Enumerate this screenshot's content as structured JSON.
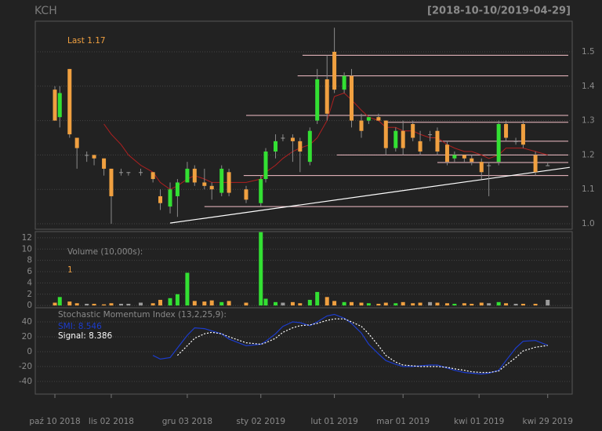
{
  "chart_data": [
    {
      "type": "candlestick",
      "title": "KCH",
      "subtitle": "[2018-10-10/2019-04-29]",
      "last_label": "Last",
      "up_color": "#33e033",
      "down_color": "#f0a040",
      "doji_color": "#9a9a9a",
      "x": [
        "2018-10-10",
        "2018-10-12",
        "2018-10-16",
        "2018-10-19",
        "2018-10-23",
        "2018-10-26",
        "2018-10-30",
        "2018-11-02",
        "2018-11-06",
        "2018-11-09",
        "2018-11-14",
        "2018-11-19",
        "2018-11-22",
        "2018-11-26",
        "2018-11-29",
        "2018-12-03",
        "2018-12-06",
        "2018-12-10",
        "2018-12-13",
        "2018-12-17",
        "2018-12-20",
        "2018-12-27",
        "2019-01-02",
        "2019-01-04",
        "2019-01-08",
        "2019-01-11",
        "2019-01-15",
        "2019-01-18",
        "2019-01-22",
        "2019-01-25",
        "2019-01-29",
        "2019-02-01",
        "2019-02-05",
        "2019-02-08",
        "2019-02-12",
        "2019-02-15",
        "2019-02-19",
        "2019-02-22",
        "2019-02-26",
        "2019-03-01",
        "2019-03-05",
        "2019-03-08",
        "2019-03-12",
        "2019-03-15",
        "2019-03-19",
        "2019-03-22",
        "2019-03-26",
        "2019-03-29",
        "2019-04-02",
        "2019-04-05",
        "2019-04-09",
        "2019-04-12",
        "2019-04-16",
        "2019-04-19",
        "2019-04-24",
        "2019-04-29"
      ],
      "open": [
        1.39,
        1.31,
        1.45,
        1.25,
        1.2,
        1.2,
        1.19,
        1.16,
        1.15,
        1.15,
        1.15,
        1.15,
        1.08,
        1.05,
        1.08,
        1.12,
        1.16,
        1.12,
        1.11,
        1.09,
        1.15,
        1.1,
        1.06,
        1.13,
        1.21,
        1.25,
        1.25,
        1.24,
        1.18,
        1.3,
        1.42,
        1.5,
        1.39,
        1.43,
        1.3,
        1.3,
        1.31,
        1.3,
        1.22,
        1.27,
        1.29,
        1.24,
        1.26,
        1.27,
        1.23,
        1.19,
        1.2,
        1.19,
        1.18,
        1.17,
        1.18,
        1.29,
        1.24,
        1.29,
        1.2,
        1.17
      ],
      "high": [
        1.4,
        1.4,
        1.45,
        1.25,
        1.21,
        1.2,
        1.19,
        1.16,
        1.16,
        1.15,
        1.16,
        1.15,
        1.1,
        1.12,
        1.13,
        1.18,
        1.17,
        1.16,
        1.12,
        1.17,
        1.16,
        1.11,
        1.14,
        1.22,
        1.26,
        1.26,
        1.26,
        1.25,
        1.28,
        1.45,
        1.49,
        1.57,
        1.44,
        1.45,
        1.32,
        1.31,
        1.32,
        1.3,
        1.28,
        1.3,
        1.3,
        1.27,
        1.27,
        1.28,
        1.24,
        1.21,
        1.2,
        1.2,
        1.19,
        1.18,
        1.3,
        1.3,
        1.25,
        1.3,
        1.21,
        1.18
      ],
      "low": [
        1.3,
        1.28,
        1.25,
        1.16,
        1.18,
        1.17,
        1.14,
        1.0,
        1.14,
        1.14,
        1.14,
        1.12,
        1.04,
        1.03,
        1.02,
        1.12,
        1.11,
        1.1,
        1.07,
        1.08,
        1.08,
        1.06,
        1.05,
        1.12,
        1.19,
        1.24,
        1.18,
        1.15,
        1.17,
        1.29,
        1.3,
        1.38,
        1.38,
        1.28,
        1.25,
        1.29,
        1.3,
        1.2,
        1.21,
        1.2,
        1.24,
        1.2,
        1.24,
        1.2,
        1.17,
        1.18,
        1.18,
        1.17,
        1.13,
        1.08,
        1.17,
        1.24,
        1.23,
        1.22,
        1.14,
        1.17
      ],
      "close": [
        1.3,
        1.38,
        1.26,
        1.22,
        1.2,
        1.19,
        1.16,
        1.08,
        1.15,
        1.15,
        1.15,
        1.13,
        1.06,
        1.1,
        1.12,
        1.16,
        1.12,
        1.11,
        1.1,
        1.16,
        1.09,
        1.07,
        1.13,
        1.21,
        1.24,
        1.25,
        1.24,
        1.21,
        1.27,
        1.42,
        1.32,
        1.39,
        1.43,
        1.3,
        1.27,
        1.31,
        1.3,
        1.22,
        1.27,
        1.22,
        1.25,
        1.21,
        1.26,
        1.21,
        1.18,
        1.2,
        1.19,
        1.18,
        1.15,
        1.17,
        1.29,
        1.25,
        1.24,
        1.23,
        1.15,
        1.17
      ],
      "sma": {
        "color": "#b02020",
        "values": [
          null,
          null,
          null,
          null,
          null,
          null,
          1.29,
          1.26,
          1.23,
          1.2,
          1.17,
          1.15,
          1.12,
          1.1,
          1.11,
          1.13,
          1.14,
          1.13,
          1.12,
          1.12,
          1.12,
          1.12,
          1.13,
          1.15,
          1.17,
          1.19,
          1.21,
          1.22,
          1.23,
          1.25,
          1.3,
          1.37,
          1.38,
          1.36,
          1.33,
          1.31,
          1.3,
          1.28,
          1.28,
          1.27,
          1.27,
          1.26,
          1.25,
          1.25,
          1.23,
          1.22,
          1.21,
          1.21,
          1.2,
          1.19,
          1.2,
          1.22,
          1.22,
          1.22,
          1.21,
          1.2
        ]
      },
      "levels": {
        "color": "#f4c0c8",
        "items": [
          {
            "value": 1.49,
            "from": "2019-01-19"
          },
          {
            "value": 1.43,
            "from": "2019-01-17"
          },
          {
            "value": 1.315,
            "from": "2018-12-27"
          },
          {
            "value": 1.295,
            "from": "2019-02-22"
          },
          {
            "value": 1.24,
            "from": "2019-03-15"
          },
          {
            "value": 1.2,
            "from": "2019-02-02"
          },
          {
            "value": 1.178,
            "from": "2019-03-15"
          },
          {
            "value": 1.14,
            "from": "2018-12-26"
          },
          {
            "value": 1.05,
            "from": "2018-12-10"
          }
        ]
      },
      "trendline": {
        "color": "#ffffff",
        "x": [
          "2018-11-26",
          "2019-05-08"
        ],
        "y": [
          1.002,
          1.164
        ]
      },
      "xlim": [
        "2018-10-02",
        "2019-05-09"
      ],
      "ylim": [
        0.984,
        1.589
      ],
      "yticks": [
        {
          "value": 1,
          "label": "1.0"
        },
        1.1,
        1.2,
        1.3,
        1.4,
        1.5
      ],
      "grid": true
    },
    {
      "type": "bar",
      "title": "Volume (10,000s):",
      "x": [
        "2018-10-10",
        "2018-10-12",
        "2018-10-16",
        "2018-10-19",
        "2018-10-23",
        "2018-10-26",
        "2018-10-30",
        "2018-11-02",
        "2018-11-06",
        "2018-11-09",
        "2018-11-14",
        "2018-11-19",
        "2018-11-22",
        "2018-11-26",
        "2018-11-29",
        "2018-12-03",
        "2018-12-06",
        "2018-12-10",
        "2018-12-13",
        "2018-12-17",
        "2018-12-20",
        "2018-12-27",
        "2019-01-02",
        "2019-01-04",
        "2019-01-08",
        "2019-01-11",
        "2019-01-15",
        "2019-01-18",
        "2019-01-22",
        "2019-01-25",
        "2019-01-29",
        "2019-02-01",
        "2019-02-05",
        "2019-02-08",
        "2019-02-12",
        "2019-02-15",
        "2019-02-19",
        "2019-02-22",
        "2019-02-26",
        "2019-03-01",
        "2019-03-05",
        "2019-03-08",
        "2019-03-12",
        "2019-03-15",
        "2019-03-19",
        "2019-03-22",
        "2019-03-26",
        "2019-03-29",
        "2019-04-02",
        "2019-04-05",
        "2019-04-09",
        "2019-04-12",
        "2019-04-16",
        "2019-04-19",
        "2019-04-24",
        "2019-04-29"
      ],
      "values": [
        0.5,
        1.5,
        0.7,
        0.4,
        0.3,
        0.3,
        0.2,
        0.4,
        0.3,
        0.3,
        0.5,
        0.4,
        1.0,
        1.3,
        2.0,
        5.8,
        0.8,
        0.7,
        0.9,
        0.6,
        0.8,
        0.5,
        13.0,
        1.2,
        0.6,
        0.5,
        0.6,
        0.4,
        1.0,
        2.4,
        1.5,
        0.8,
        0.6,
        0.6,
        0.5,
        0.4,
        0.3,
        0.5,
        0.4,
        0.6,
        0.4,
        0.5,
        0.6,
        0.5,
        0.4,
        0.3,
        0.4,
        0.3,
        0.5,
        0.4,
        0.6,
        0.4,
        0.3,
        0.3,
        0.3,
        1
      ],
      "xlim": [
        "2018-10-02",
        "2019-05-09"
      ],
      "ylim": [
        -0.4,
        13.1
      ],
      "yticks": [
        0,
        2,
        4,
        6,
        8,
        10,
        12
      ],
      "grid": true
    },
    {
      "type": "line",
      "title": "Stochastic Momentum Index (13,2,25,9):",
      "x": [
        "2018-10-10",
        "2018-10-12",
        "2018-10-16",
        "2018-10-19",
        "2018-10-23",
        "2018-10-26",
        "2018-10-30",
        "2018-11-02",
        "2018-11-06",
        "2018-11-09",
        "2018-11-14",
        "2018-11-19",
        "2018-11-22",
        "2018-11-26",
        "2018-11-29",
        "2018-12-03",
        "2018-12-06",
        "2018-12-10",
        "2018-12-13",
        "2018-12-17",
        "2018-12-20",
        "2018-12-27",
        "2019-01-02",
        "2019-01-04",
        "2019-01-08",
        "2019-01-11",
        "2019-01-15",
        "2019-01-18",
        "2019-01-22",
        "2019-01-25",
        "2019-01-29",
        "2019-02-01",
        "2019-02-05",
        "2019-02-08",
        "2019-02-12",
        "2019-02-15",
        "2019-02-19",
        "2019-02-22",
        "2019-02-26",
        "2019-03-01",
        "2019-03-05",
        "2019-03-08",
        "2019-03-12",
        "2019-03-15",
        "2019-03-19",
        "2019-03-22",
        "2019-03-26",
        "2019-03-29",
        "2019-04-02",
        "2019-04-05",
        "2019-04-09",
        "2019-04-12",
        "2019-04-16",
        "2019-04-19",
        "2019-04-24",
        "2019-04-29"
      ],
      "series": [
        {
          "name": "SMI:",
          "color": "#1c3ccc",
          "dash": false,
          "values": [
            null,
            null,
            null,
            null,
            null,
            null,
            null,
            null,
            null,
            null,
            null,
            -5,
            -10,
            -8,
            5,
            22,
            32,
            31,
            28,
            24,
            17,
            8,
            10,
            14,
            24,
            34,
            40,
            39,
            35,
            40,
            48,
            50,
            45,
            38,
            25,
            10,
            -3,
            -12,
            -17,
            -20,
            -20,
            -19,
            -18,
            -18,
            -22,
            -25,
            -28,
            -29,
            -30,
            -29,
            -25,
            -12,
            5,
            14,
            15,
            8.546
          ]
        },
        {
          "name": "Signal:",
          "color": "#ffffff",
          "dash": true,
          "values": [
            null,
            null,
            null,
            null,
            null,
            null,
            null,
            null,
            null,
            null,
            null,
            null,
            null,
            null,
            -5,
            8,
            18,
            24,
            26,
            24,
            20,
            12,
            10,
            12,
            18,
            26,
            32,
            35,
            36,
            38,
            42,
            44,
            44,
            40,
            34,
            24,
            8,
            -5,
            -14,
            -18,
            -19,
            -20,
            -20,
            -20,
            -21,
            -23,
            -25,
            -27,
            -28,
            -28,
            -26,
            -18,
            -8,
            1,
            6,
            8.386
          ]
        }
      ],
      "xlim": [
        "2018-10-02",
        "2019-05-09"
      ],
      "ylim": [
        -57,
        59
      ],
      "yticks": [
        -40,
        -20,
        0,
        20,
        40
      ],
      "xticks": [
        {
          "value": "2018-10-10",
          "label": "paź 10 2018"
        },
        {
          "value": "2018-11-02",
          "label": "lis 02 2018"
        },
        {
          "value": "2018-12-03",
          "label": "gru 03 2018"
        },
        {
          "value": "2019-01-02",
          "label": "sty 02 2019"
        },
        {
          "value": "2019-02-01",
          "label": "lut 01 2019"
        },
        {
          "value": "2019-03-01",
          "label": "mar 01 2019"
        },
        {
          "value": "2019-04-01",
          "label": "kwi 01 2019"
        },
        {
          "value": "2019-04-29",
          "label": "kwi 29 2019"
        }
      ],
      "grid": true
    }
  ]
}
